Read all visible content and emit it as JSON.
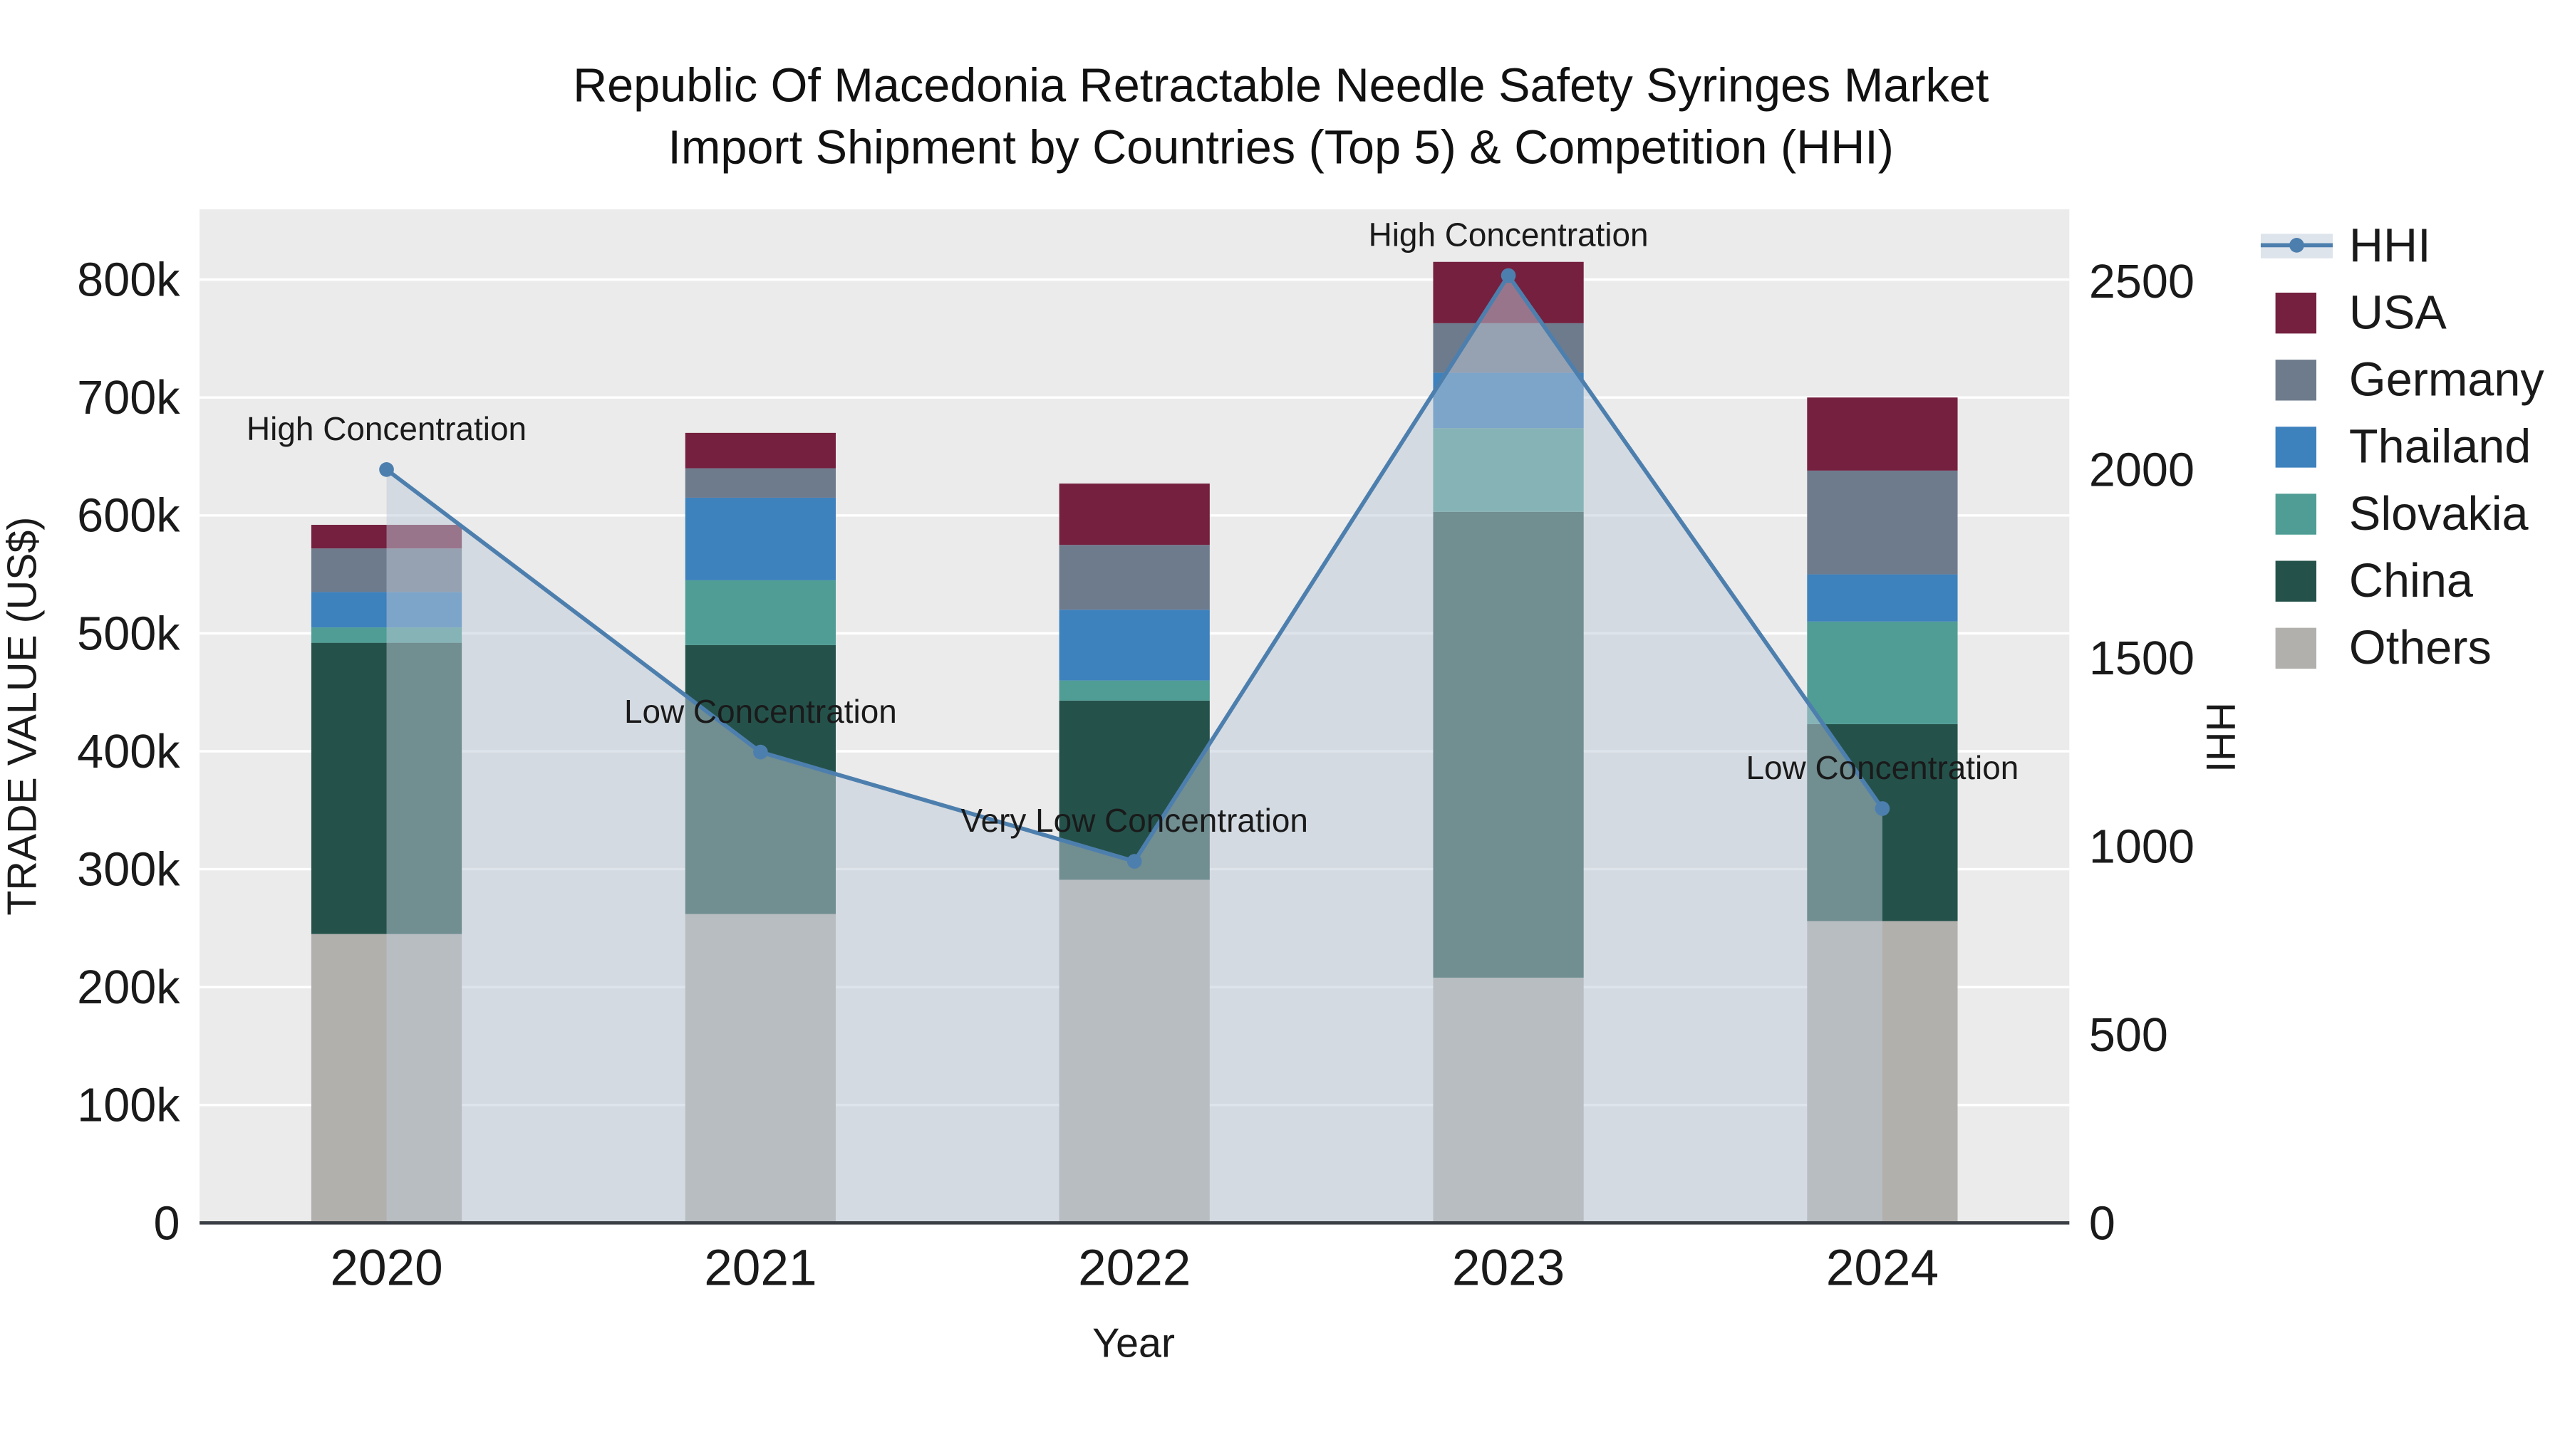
{
  "chart_data": {
    "type": "bar",
    "title_line1": "Republic Of Macedonia Retractable Needle Safety Syringes Market",
    "title_line2": "Import Shipment by Countries (Top 5) & Competition (HHI)",
    "xlabel": "Year",
    "ylabel_left": "TRADE VALUE (US$)",
    "ylabel_right": "HHI",
    "categories": [
      "2020",
      "2021",
      "2022",
      "2023",
      "2024"
    ],
    "series": [
      {
        "name": "Others",
        "color": "#b2b0ad",
        "values": [
          245000,
          262000,
          291000,
          208000,
          256000
        ]
      },
      {
        "name": "China",
        "color": "#24524b",
        "values": [
          247000,
          228000,
          152000,
          395000,
          167000
        ]
      },
      {
        "name": "Slovakia",
        "color": "#4f9d95",
        "values": [
          13000,
          55000,
          17000,
          71000,
          87000
        ]
      },
      {
        "name": "Thailand",
        "color": "#3d81bd",
        "values": [
          30000,
          70000,
          60000,
          47000,
          40000
        ]
      },
      {
        "name": "Germany",
        "color": "#6e7b8d",
        "values": [
          37000,
          25000,
          55000,
          42000,
          88000
        ]
      },
      {
        "name": "USA",
        "color": "#74203e",
        "values": [
          20000,
          30000,
          52000,
          52000,
          62000
        ]
      }
    ],
    "hhi": {
      "name": "HHI",
      "line_color": "#4d7fae",
      "fill_color": "rgba(190,202,215,0.5)",
      "values": [
        2000,
        1250,
        960,
        2515,
        1100
      ]
    },
    "annotations": [
      "High Concentration",
      "Low Concentration",
      "Very Low Concentration",
      "High Concentration",
      "Low Concentration"
    ],
    "legend_order": [
      "HHI",
      "USA",
      "Germany",
      "Thailand",
      "Slovakia",
      "China",
      "Others"
    ],
    "left_ticks": [
      {
        "label": "0",
        "value": 0
      },
      {
        "label": "100k",
        "value": 100000
      },
      {
        "label": "200k",
        "value": 200000
      },
      {
        "label": "300k",
        "value": 300000
      },
      {
        "label": "400k",
        "value": 400000
      },
      {
        "label": "500k",
        "value": 500000
      },
      {
        "label": "600k",
        "value": 600000
      },
      {
        "label": "700k",
        "value": 700000
      },
      {
        "label": "800k",
        "value": 800000
      }
    ],
    "right_ticks": [
      {
        "label": "0",
        "value": 0
      },
      {
        "label": "500",
        "value": 500
      },
      {
        "label": "1000",
        "value": 1000
      },
      {
        "label": "1500",
        "value": 1500
      },
      {
        "label": "2000",
        "value": 2000
      },
      {
        "label": "2500",
        "value": 2500
      }
    ],
    "left_axis_max": 800000,
    "right_axis_max": 2500,
    "plot_bg_color": "#ebebeb",
    "grid_color": "#ffffff"
  }
}
